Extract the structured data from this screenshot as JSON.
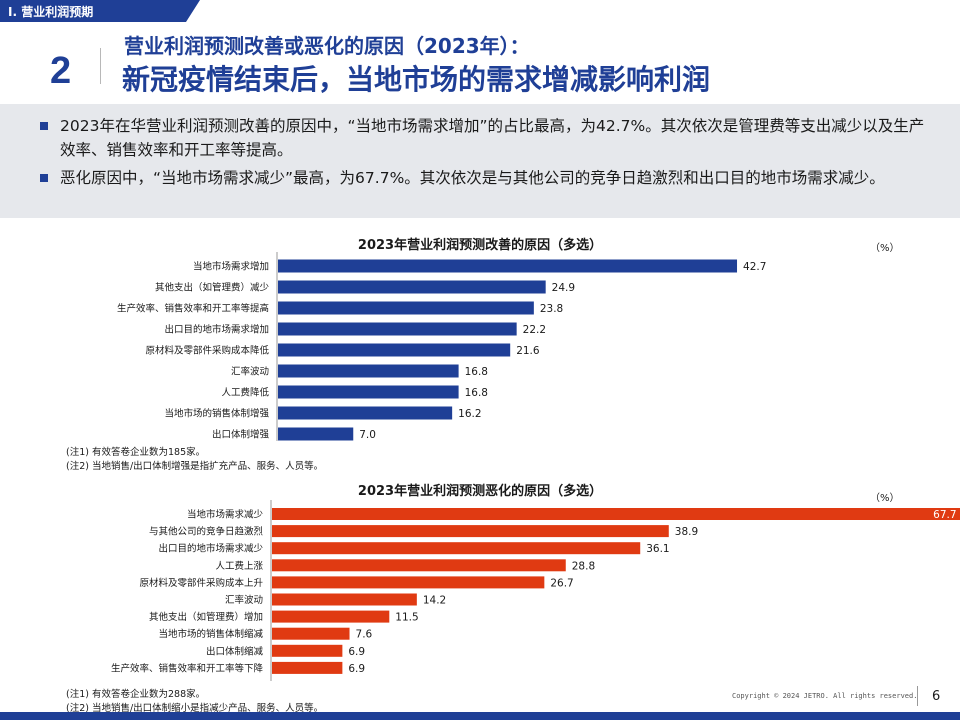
{
  "section_tab": "Ⅰ. 营业利润预期",
  "slide_number": "2",
  "title_line1": "营业利润预测改善或恶化的原因（2023年）：",
  "title_line2": "新冠疫情结束后，当地市场的需求增减影响利润",
  "summary": [
    "2023年在华营业利润预测改善的原因中，“当地市场需求增加”的占比最高，为42.7%。其次依次是管理费等支出减少以及生产效率、销售效率和开工率等提高。",
    "恶化原因中，“当地市场需求减少”最高，为67.7%。其次依次是与其他公司的竞争日趋激烈和出口目的地市场需求减少。"
  ],
  "chart_data": [
    {
      "type": "bar",
      "orientation": "horizontal",
      "title": "2023年营业利润预测改善的原因（多选）",
      "unit": "（%）",
      "categories": [
        "当地市场需求增加",
        "其他支出（如管理费）减少",
        "生产效率、销售效率和开工率等提高",
        "出口目的地市场需求增加",
        "原材料及零部件采购成本降低",
        "汇率波动",
        "人工费降低",
        "当地市场的销售体制增强",
        "出口体制增强"
      ],
      "values": [
        42.7,
        24.9,
        23.8,
        22.2,
        21.6,
        16.8,
        16.8,
        16.2,
        7.0
      ],
      "value_labels": [
        "42.7",
        "24.9",
        "23.8",
        "22.2",
        "21.6",
        "16.8",
        "16.8",
        "16.2",
        "7.0"
      ],
      "color": "#1f3f96",
      "xlim": [
        0,
        100
      ],
      "notes": [
        "(注1) 有效答卷企业数为185家。",
        "(注2) 当地销售/出口体制增强是指扩充产品、服务、人员等。"
      ]
    },
    {
      "type": "bar",
      "orientation": "horizontal",
      "title": "2023年营业利润预测恶化的原因（多选）",
      "unit": "（%）",
      "categories": [
        "当地市场需求减少",
        "与其他公司的竞争日趋激烈",
        "出口目的地市场需求减少",
        "人工费上涨",
        "原材料及零部件采购成本上升",
        "汇率波动",
        "其他支出（如管理费）增加",
        "当地市场的销售体制缩减",
        "出口体制缩减",
        "生产效率、销售效率和开工率等下降"
      ],
      "values": [
        67.7,
        38.9,
        36.1,
        28.8,
        26.7,
        14.2,
        11.5,
        7.6,
        6.9,
        6.9
      ],
      "value_labels": [
        "67.7",
        "38.9",
        "36.1",
        "28.8",
        "26.7",
        "14.2",
        "11.5",
        "7.6",
        "6.9",
        "6.9"
      ],
      "color": "#e03a12",
      "xlim": [
        0,
        100
      ],
      "notes": [
        "(注1) 有效答卷企业数为288家。",
        "(注2) 当地销售/出口体制缩小是指减少产品、服务、人员等。"
      ]
    }
  ],
  "footer": {
    "copyright": "Copyright © 2024 JETRO. All rights reserved.",
    "page": "6"
  }
}
